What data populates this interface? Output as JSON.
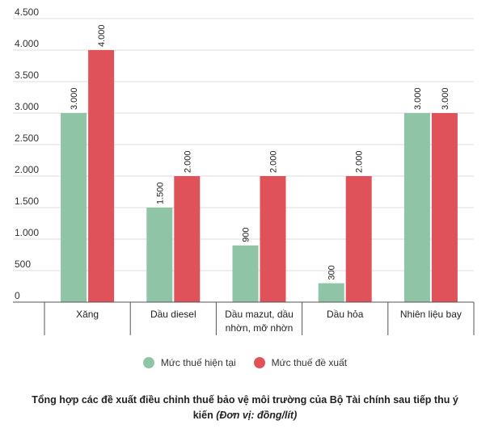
{
  "chart_data": {
    "type": "bar",
    "categories": [
      "Xăng",
      "Dầu diesel",
      "Dầu mazut, dầu nhờn, mỡ nhờn",
      "Dầu hỏa",
      "Nhiên liệu bay"
    ],
    "category_lines": [
      [
        "Xăng"
      ],
      [
        "Dầu diesel"
      ],
      [
        "Dầu mazut, dầu",
        "nhờn, mỡ nhờn"
      ],
      [
        "Dầu hỏa"
      ],
      [
        "Nhiên liệu bay"
      ]
    ],
    "series": [
      {
        "name": "Mức thuế hiện tại",
        "values": [
          3000,
          1500,
          900,
          300,
          3000
        ],
        "value_labels": [
          "3.000",
          "1.500",
          "900",
          "300",
          "3.000"
        ],
        "color": "#8fc4a6"
      },
      {
        "name": "Mức thuế đề xuất",
        "values": [
          4000,
          2000,
          2000,
          2000,
          3000
        ],
        "value_labels": [
          "4.000",
          "2.000",
          "2.000",
          "2.000",
          "3.000"
        ],
        "color": "#e0525a"
      }
    ],
    "ylim": [
      0,
      4500
    ],
    "yticks": [
      0,
      500,
      1000,
      1500,
      2000,
      2500,
      3000,
      3500,
      4000,
      4500
    ],
    "ytick_labels": [
      "0",
      "500",
      "1.000",
      "1.500",
      "2.000",
      "2.500",
      "3.000",
      "3.500",
      "4.000",
      "4.500"
    ],
    "grid": true,
    "legend_position": "bottom"
  },
  "caption": {
    "main": "Tổng hợp các đề xuất điều chỉnh thuế bảo vệ môi trường của Bộ Tài chính sau tiếp thu ý kiến",
    "unit": "(Đơn vị: đồng/lít)"
  },
  "colors": {
    "grid": "#dddddd",
    "axis": "#555555"
  }
}
